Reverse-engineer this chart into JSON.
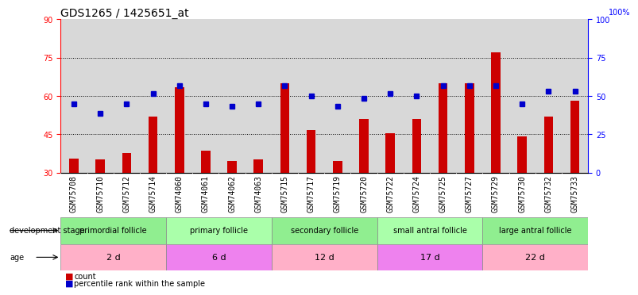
{
  "title": "GDS1265 / 1425651_at",
  "samples": [
    "GSM75708",
    "GSM75710",
    "GSM75712",
    "GSM75714",
    "GSM74060",
    "GSM74061",
    "GSM74062",
    "GSM74063",
    "GSM75715",
    "GSM75717",
    "GSM75719",
    "GSM75720",
    "GSM75722",
    "GSM75724",
    "GSM75725",
    "GSM75727",
    "GSM75729",
    "GSM75730",
    "GSM75732",
    "GSM75733"
  ],
  "bar_values": [
    35.5,
    35.0,
    37.5,
    52.0,
    63.5,
    38.5,
    34.5,
    35.0,
    65.0,
    46.5,
    34.5,
    51.0,
    45.5,
    51.0,
    65.0,
    65.0,
    77.0,
    44.0,
    52.0,
    58.0
  ],
  "dot_left_values": [
    57,
    53,
    57,
    61,
    64,
    57,
    56,
    57,
    64,
    60,
    56,
    59,
    61,
    60,
    64,
    64,
    64,
    57,
    62,
    62
  ],
  "groups": [
    {
      "name": "primordial follicle",
      "start": 0,
      "end": 3
    },
    {
      "name": "primary follicle",
      "start": 4,
      "end": 7
    },
    {
      "name": "secondary follicle",
      "start": 8,
      "end": 11
    },
    {
      "name": "small antral follicle",
      "start": 12,
      "end": 15
    },
    {
      "name": "large antral follicle",
      "start": 16,
      "end": 19
    }
  ],
  "age_groups": [
    {
      "label": "2 d",
      "start": 0,
      "end": 3
    },
    {
      "label": "6 d",
      "start": 4,
      "end": 7
    },
    {
      "label": "12 d",
      "start": 8,
      "end": 11
    },
    {
      "label": "17 d",
      "start": 12,
      "end": 15
    },
    {
      "label": "22 d",
      "start": 16,
      "end": 19
    }
  ],
  "group_colors": [
    "#90EE90",
    "#aaffaa",
    "#90EE90",
    "#aaffaa",
    "#90EE90"
  ],
  "age_colors": [
    "#FFB6C1",
    "#EE82EE",
    "#FFB6C1",
    "#EE82EE",
    "#FFB6C1"
  ],
  "bar_color": "#CC0000",
  "dot_color": "#0000CC",
  "left_ylim": [
    30,
    90
  ],
  "right_ylim": [
    0,
    100
  ],
  "left_yticks": [
    30,
    45,
    60,
    75,
    90
  ],
  "right_yticks": [
    0,
    25,
    50,
    75,
    100
  ],
  "hline_values": [
    45,
    60,
    75
  ],
  "bar_width": 0.35,
  "title_fontsize": 10,
  "tick_fontsize": 7,
  "label_fontsize": 7
}
